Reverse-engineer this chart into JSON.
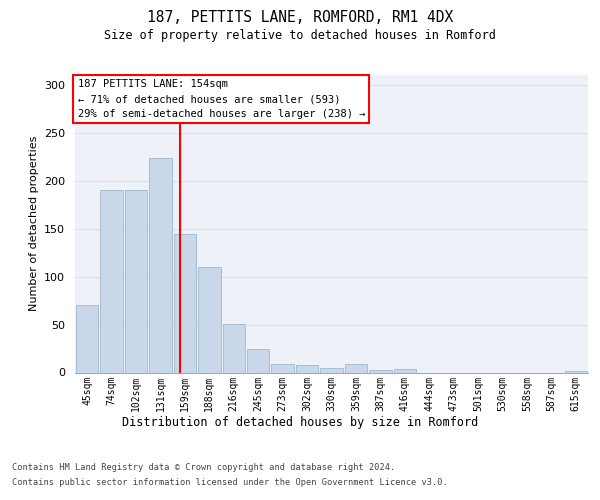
{
  "title": "187, PETTITS LANE, ROMFORD, RM1 4DX",
  "subtitle": "Size of property relative to detached houses in Romford",
  "xlabel": "Distribution of detached houses by size in Romford",
  "ylabel": "Number of detached properties",
  "categories": [
    "45sqm",
    "74sqm",
    "102sqm",
    "131sqm",
    "159sqm",
    "188sqm",
    "216sqm",
    "245sqm",
    "273sqm",
    "302sqm",
    "330sqm",
    "359sqm",
    "387sqm",
    "416sqm",
    "444sqm",
    "473sqm",
    "501sqm",
    "530sqm",
    "558sqm",
    "587sqm",
    "615sqm"
  ],
  "values": [
    70,
    190,
    190,
    224,
    144,
    110,
    51,
    25,
    9,
    8,
    5,
    9,
    3,
    4,
    0,
    0,
    0,
    0,
    0,
    0,
    2
  ],
  "bar_color": "#c8d8e8",
  "bar_edge_color": "#a0b8cc",
  "vline_x": 3.78,
  "annotation_text": "187 PETTITS LANE: 154sqm\n← 71% of detached houses are smaller (593)\n29% of semi-detached houses are larger (238) →",
  "annotation_box_color": "white",
  "annotation_box_edge_color": "red",
  "vline_color": "red",
  "ylim": [
    0,
    310
  ],
  "yticks": [
    0,
    50,
    100,
    150,
    200,
    250,
    300
  ],
  "grid_color": "#d8e0ea",
  "background_color": "#eef2f8",
  "footer_line1": "Contains HM Land Registry data © Crown copyright and database right 2024.",
  "footer_line2": "Contains public sector information licensed under the Open Government Licence v3.0."
}
